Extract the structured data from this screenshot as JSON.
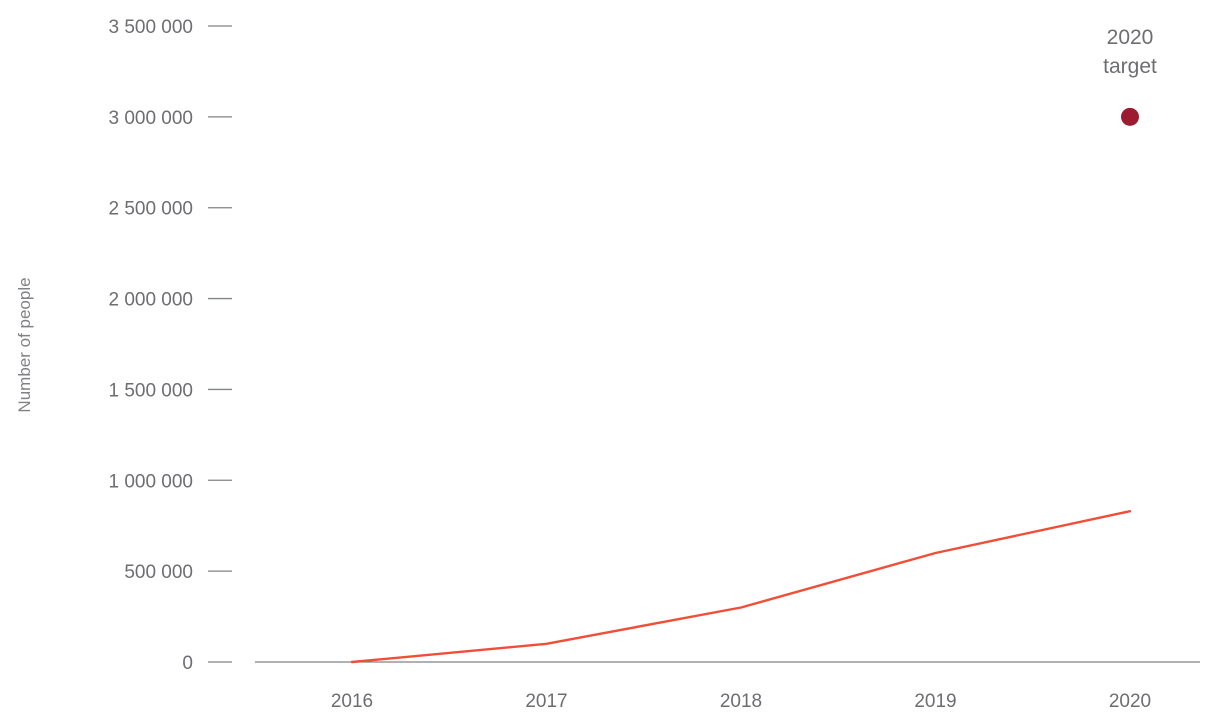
{
  "chart_data": {
    "type": "line",
    "title": "",
    "xlabel": "",
    "ylabel": "Number of people",
    "x": [
      "2016",
      "2017",
      "2018",
      "2019",
      "2020"
    ],
    "ylim": [
      0,
      3500000
    ],
    "yticks": [
      0,
      500000,
      1000000,
      1500000,
      2000000,
      2500000,
      3000000,
      3500000
    ],
    "ytick_labels": [
      "0",
      "500 000",
      "1 000 000",
      "1 500 000",
      "2 000 000",
      "2 500 000",
      "3 000 000",
      "3 500 000"
    ],
    "grid": false,
    "series": [
      {
        "values": [
          0,
          100000,
          300000,
          600000,
          830000
        ],
        "color": "#f04e37"
      }
    ],
    "target": {
      "x": "2020",
      "value": 3000000,
      "label_line1": "2020",
      "label_line2": "target",
      "color": "#9b1b30"
    },
    "axis_color": "#808285"
  }
}
